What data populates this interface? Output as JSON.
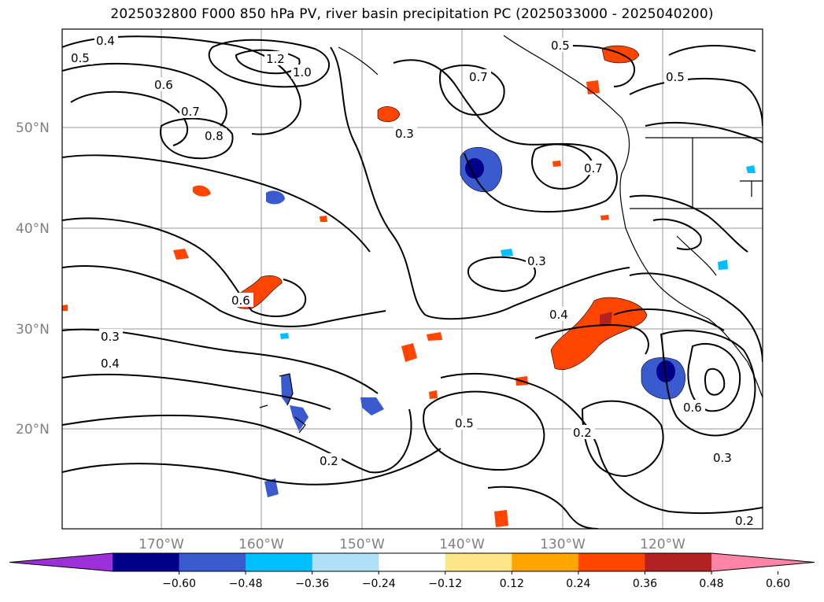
{
  "title": "2025032800 F000 850 hPa PV, river basin precipitation PC (2025033000 - 2025040200)",
  "map": {
    "lat_labels": [
      "50°N",
      "40°N",
      "30°N",
      "20°N"
    ],
    "lon_labels": [
      "170°W",
      "160°W",
      "150°W",
      "140°W",
      "130°W",
      "120°W"
    ],
    "contour_labels": [
      "0.4",
      "0.5",
      "0.6",
      "0.7",
      "0.8",
      "1.0",
      "1.2",
      "0.3",
      "0.2",
      "0.4",
      "0.5",
      "0.6",
      "0.7",
      "0.5",
      "0.4",
      "0.3",
      "0.2",
      "0.6",
      "0.5",
      "0.7",
      "0.3",
      "0.2",
      "0.3"
    ]
  },
  "colorbar": {
    "ticks": [
      "−0.60",
      "−0.48",
      "−0.36",
      "−0.24",
      "−0.12",
      "0.12",
      "0.24",
      "0.36",
      "0.48",
      "0.60"
    ],
    "colors": [
      "#9b30d8",
      "#00008b",
      "#3a5bd0",
      "#00bfff",
      "#b0e0f8",
      "#ffffff",
      "#fde68a",
      "#ffa500",
      "#ff4500",
      "#b22222",
      "#ff85a8"
    ]
  }
}
